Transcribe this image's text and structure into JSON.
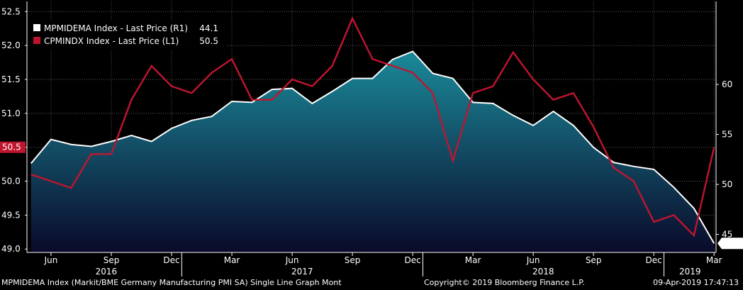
{
  "chart_data": {
    "type": "line",
    "series": [
      {
        "name": "MPMIDEMA Index - Last Price (R1)",
        "last_label": "44.1",
        "axis": "right",
        "color": "#ffffff",
        "fill": true,
        "x": [
          "2016-05",
          "2016-06",
          "2016-07",
          "2016-08",
          "2016-09",
          "2016-10",
          "2016-11",
          "2016-12",
          "2017-01",
          "2017-02",
          "2017-03",
          "2017-04",
          "2017-05",
          "2017-06",
          "2017-07",
          "2017-08",
          "2017-09",
          "2017-10",
          "2017-11",
          "2017-12",
          "2018-01",
          "2018-02",
          "2018-03",
          "2018-04",
          "2018-05",
          "2018-06",
          "2018-07",
          "2018-08",
          "2018-09",
          "2018-10",
          "2018-11",
          "2018-12",
          "2019-01",
          "2019-02",
          "2019-03"
        ],
        "values": [
          52.1,
          54.5,
          54.0,
          53.8,
          54.3,
          54.9,
          54.3,
          55.6,
          56.4,
          56.8,
          58.3,
          58.2,
          59.5,
          59.6,
          58.1,
          59.3,
          60.6,
          60.6,
          62.5,
          63.3,
          61.1,
          60.6,
          58.2,
          58.1,
          56.9,
          55.9,
          57.3,
          55.9,
          53.7,
          52.2,
          51.8,
          51.5,
          49.7,
          47.6,
          44.1
        ]
      },
      {
        "name": "CPMINDX Index - Last Price (L1)",
        "last_label": "50.5",
        "axis": "left",
        "color": "#c0152f",
        "fill": false,
        "x": [
          "2016-05",
          "2016-06",
          "2016-07",
          "2016-08",
          "2016-09",
          "2016-10",
          "2016-11",
          "2016-12",
          "2017-01",
          "2017-02",
          "2017-03",
          "2017-04",
          "2017-05",
          "2017-06",
          "2017-07",
          "2017-08",
          "2017-09",
          "2017-10",
          "2017-11",
          "2017-12",
          "2018-01",
          "2018-02",
          "2018-03",
          "2018-04",
          "2018-05",
          "2018-06",
          "2018-07",
          "2018-08",
          "2018-09",
          "2018-10",
          "2018-11",
          "2018-12",
          "2019-01",
          "2019-02",
          "2019-03"
        ],
        "values": [
          50.1,
          50.0,
          49.9,
          50.4,
          50.4,
          51.2,
          51.7,
          51.4,
          51.3,
          51.6,
          51.8,
          51.2,
          51.2,
          51.5,
          51.4,
          51.7,
          52.4,
          51.8,
          51.7,
          51.6,
          51.3,
          50.3,
          51.3,
          51.4,
          51.9,
          51.5,
          51.2,
          51.3,
          50.8,
          50.2,
          50.0,
          49.4,
          49.5,
          49.2,
          50.5
        ]
      }
    ],
    "left_axis": {
      "min": 48.95,
      "max": 52.65,
      "ticks": [
        49.0,
        49.5,
        50.0,
        50.5,
        51.0,
        51.5,
        52.0,
        52.5
      ],
      "tick_labels": [
        "49.0",
        "49.5",
        "50.0",
        "",
        "51.0",
        "51.5",
        "52.0",
        "52.5"
      ],
      "current_label": "50.5"
    },
    "right_axis": {
      "min": 43.2,
      "max": 68.3,
      "ticks": [
        45,
        50,
        55,
        60
      ],
      "tick_labels": [
        "45",
        "50",
        "55",
        "60"
      ],
      "current_label": "44.1"
    },
    "x_ticks": [
      {
        "date": "2016-06",
        "label": "Jun"
      },
      {
        "date": "2016-09",
        "label": "Sep"
      },
      {
        "date": "2016-12",
        "label": "Dec"
      },
      {
        "date": "2017-03",
        "label": "Mar"
      },
      {
        "date": "2017-06",
        "label": "Jun"
      },
      {
        "date": "2017-09",
        "label": "Sep"
      },
      {
        "date": "2017-12",
        "label": "Dec"
      },
      {
        "date": "2018-03",
        "label": "Mar"
      },
      {
        "date": "2018-06",
        "label": "Jun"
      },
      {
        "date": "2018-09",
        "label": "Sep"
      },
      {
        "date": "2018-12",
        "label": "Dec"
      },
      {
        "date": "2019-03",
        "label": "Mar"
      }
    ],
    "years": [
      {
        "label": "2016",
        "span": [
          "2016-05",
          "2016-12"
        ]
      },
      {
        "label": "2017",
        "span": [
          "2017-01",
          "2017-12"
        ]
      },
      {
        "label": "2018",
        "span": [
          "2018-01",
          "2018-12"
        ]
      },
      {
        "label": "2019",
        "span": [
          "2019-01",
          "2019-03"
        ]
      }
    ],
    "grid": true,
    "legend": "top-left",
    "background": "#000000",
    "fill_top_color": "#1a8a9a",
    "fill_bottom_color": "#0a0a2a"
  },
  "footer": {
    "left": "MPMIDEMA Index (Markit/BME Germany Manufacturing PMI SA) Single Line Graph  Mont",
    "center": "Copyright© 2019 Bloomberg Finance L.P.",
    "right": "09-Apr-2019 17:47:13"
  }
}
